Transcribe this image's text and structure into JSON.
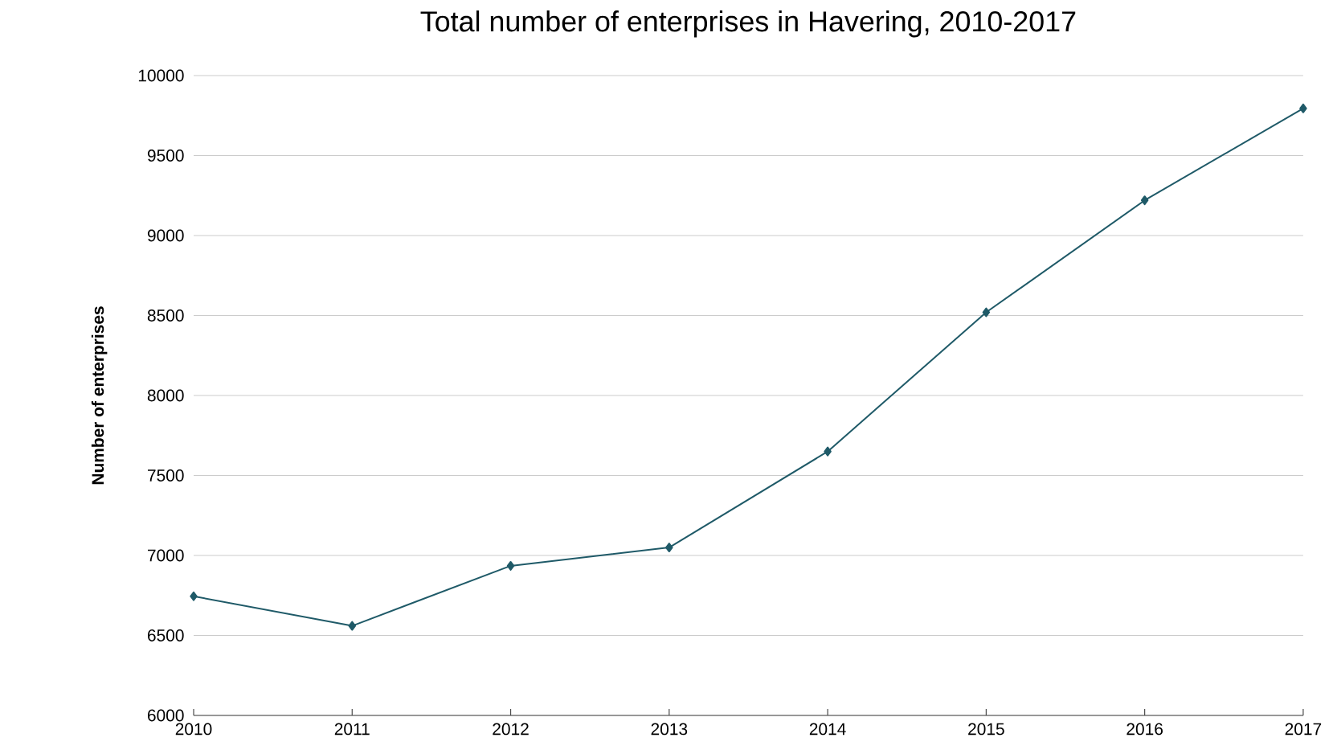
{
  "chart_data": {
    "type": "line",
    "title": "Total number of enterprises in Havering, 2010-2017",
    "ylabel": "Number of enterprises",
    "x": [
      2010,
      2011,
      2012,
      2013,
      2014,
      2015,
      2016,
      2017
    ],
    "series": [
      {
        "color": "#1f5a68",
        "values": [
          6745,
          6560,
          6935,
          7050,
          7650,
          8520,
          9220,
          9795
        ]
      }
    ],
    "xlim": [
      2010,
      2017
    ],
    "xticks": [
      2010,
      2011,
      2012,
      2013,
      2014,
      2015,
      2016,
      2017
    ],
    "ylim": [
      6000,
      10000
    ],
    "yticks": [
      6000,
      6500,
      7000,
      7500,
      8000,
      8500,
      9000,
      9500,
      10000
    ],
    "grid": "y",
    "marker": "diamond",
    "line_style": "solid"
  }
}
